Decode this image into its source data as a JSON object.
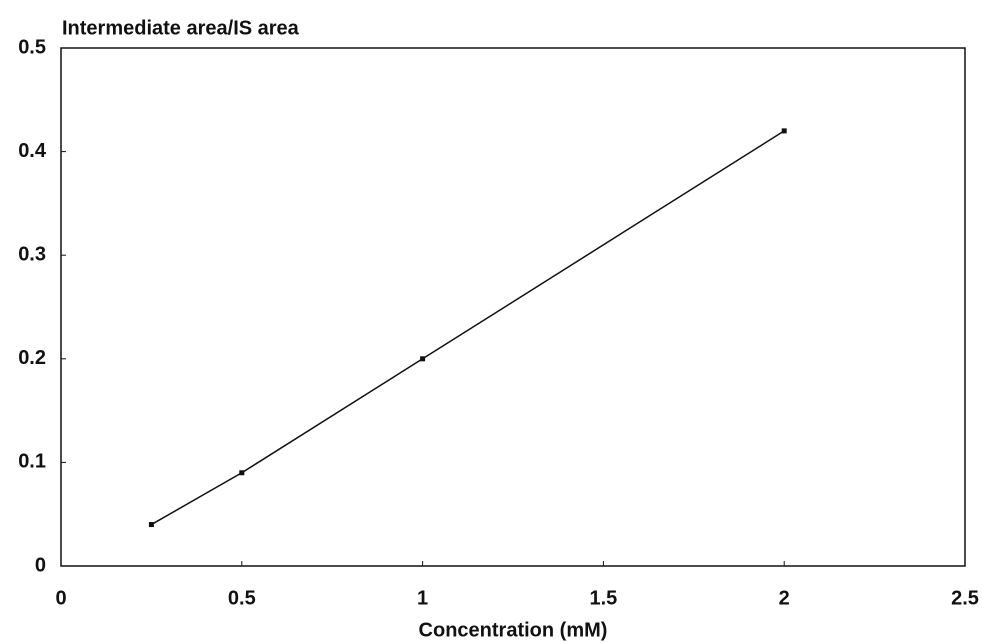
{
  "chart_data": {
    "type": "line",
    "y_label": "Intermediate area/IS area",
    "x_label": "Concentration (mM)",
    "x": [
      0.25,
      0.5,
      1,
      2
    ],
    "series": [
      {
        "color": "#111111",
        "values": [
          0.04,
          0.09,
          0.2,
          0.42
        ]
      }
    ],
    "xlim": [
      0,
      2.5
    ],
    "xticks": [
      0,
      0.5,
      1,
      1.5,
      2,
      2.5
    ],
    "ylim": [
      0,
      0.5
    ],
    "yticks": [
      0,
      0.1,
      0.2,
      0.3,
      0.4,
      0.5
    ],
    "grid": false
  }
}
